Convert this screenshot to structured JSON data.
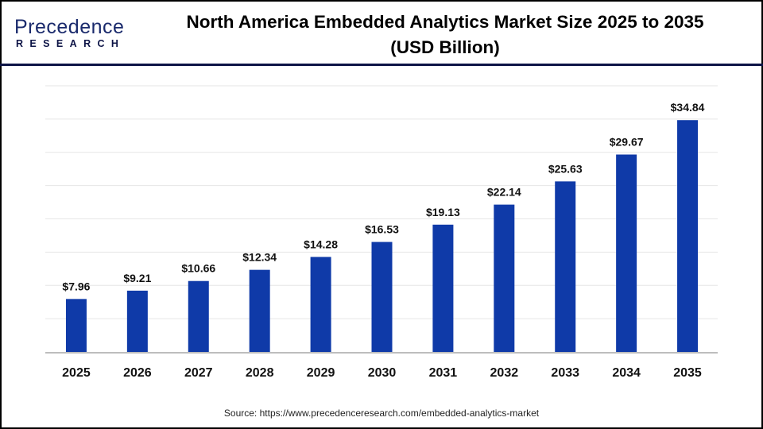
{
  "logo": {
    "line1": "Precedence",
    "line2": "RESEARCH"
  },
  "title_line1": "North America Embedded Analytics Market Size 2025 to 2035",
  "title_line2": "(USD Billion)",
  "source": "Source: https://www.precedenceresearch.com/embedded-analytics-market",
  "colors": {
    "bar": "#0f3aa8",
    "header_line": "#0d1446",
    "grid": "#e6e6e6",
    "axis": "#bdbdbd"
  },
  "chart_data": {
    "type": "bar",
    "title": "North America Embedded Analytics Market Size 2025 to 2035 (USD Billion)",
    "categories": [
      "2025",
      "2026",
      "2027",
      "2028",
      "2029",
      "2030",
      "2031",
      "2032",
      "2033",
      "2034",
      "2035"
    ],
    "values": [
      7.96,
      9.21,
      10.66,
      12.34,
      14.28,
      16.53,
      19.13,
      22.14,
      25.63,
      29.67,
      34.84
    ],
    "labels": [
      "$7.96",
      "$9.21",
      "$10.66",
      "$12.34",
      "$14.28",
      "$16.53",
      "$19.13",
      "$22.14",
      "$25.63",
      "$29.67",
      "$34.84"
    ],
    "xlabel": "",
    "ylabel": "",
    "ylim": [
      0,
      40
    ],
    "grid": true,
    "y_ticks_shown": false
  }
}
